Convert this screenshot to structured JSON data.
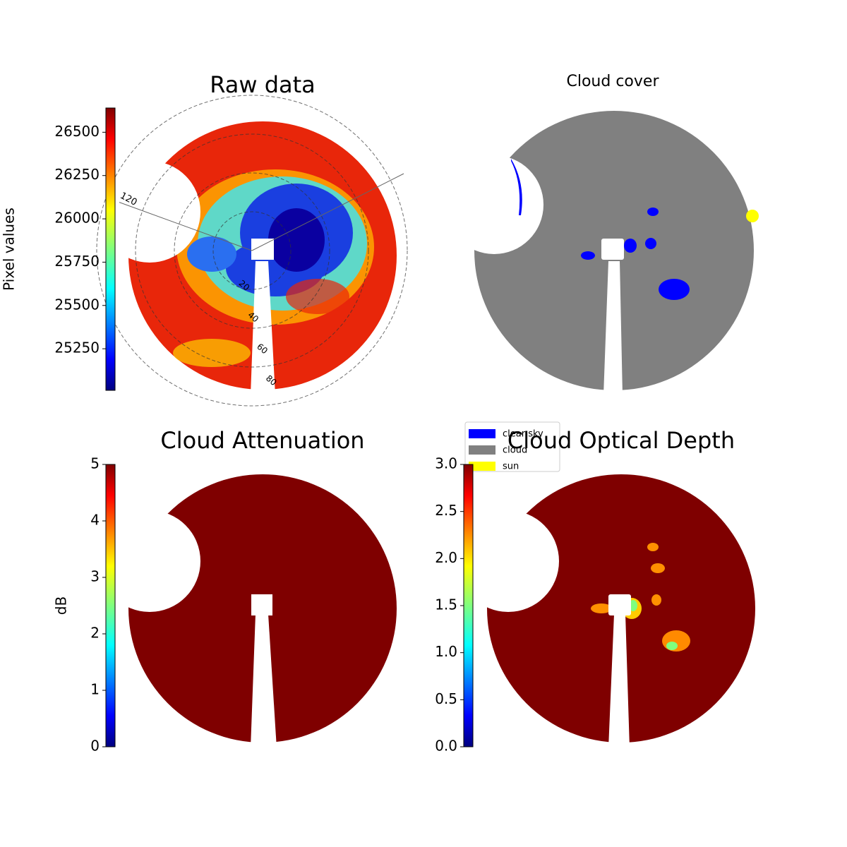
{
  "chart_data": [
    {
      "type": "image",
      "title": "Raw data",
      "colorbar_label": "Pixel values",
      "clim": [
        25010,
        26640
      ],
      "cticks": [
        25250,
        25500,
        25750,
        26000,
        26250,
        26500
      ],
      "rticks": [
        20,
        40,
        60,
        80
      ],
      "thetaticks": [
        120
      ]
    },
    {
      "type": "image",
      "title": "Cloud cover",
      "legend": [
        {
          "name": "clear sky",
          "color": "#0000ff"
        },
        {
          "name": "cloud",
          "color": "#808080"
        },
        {
          "name": "sun",
          "color": "#ffff00"
        }
      ]
    },
    {
      "type": "image",
      "title": "Cloud Attenuation",
      "colorbar_label": "dB",
      "clim": [
        0,
        5
      ],
      "cticks": [
        0,
        1,
        2,
        3,
        4,
        5
      ]
    },
    {
      "type": "image",
      "title": "Cloud Optical Depth",
      "clim": [
        0,
        3
      ],
      "cticks": [
        {
          "value": 0,
          "label": "0.0"
        },
        0.5,
        {
          "value": 1,
          "label": "1.0"
        },
        1.5,
        {
          "value": 2,
          "label": "2.0"
        },
        2.5,
        {
          "value": 3,
          "label": "3.0"
        }
      ]
    }
  ]
}
